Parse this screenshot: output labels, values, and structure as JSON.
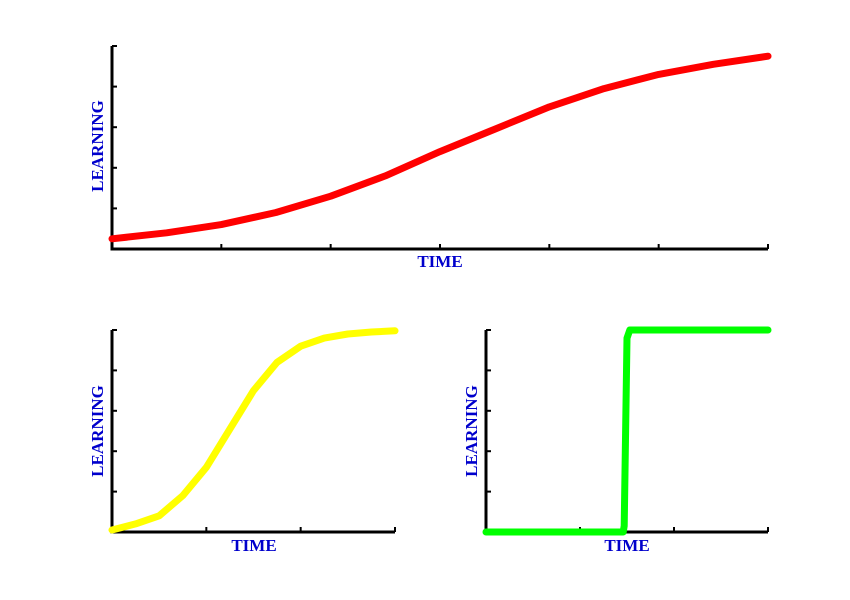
{
  "chart_data": [
    {
      "type": "line",
      "title": "",
      "xlabel": "TIME",
      "ylabel": "LEARNING",
      "xlim": [
        0,
        6
      ],
      "ylim": [
        0,
        5
      ],
      "xticks": [
        0,
        1,
        2,
        3,
        4,
        5,
        6
      ],
      "yticks": [
        0,
        1,
        2,
        3,
        4,
        5
      ],
      "tick_labels_shown": false,
      "grid": false,
      "series": [
        {
          "color": "#ff0000",
          "x": [
            0,
            0.5,
            1,
            1.5,
            2,
            2.5,
            3,
            3.5,
            4,
            4.5,
            5,
            5.5,
            6
          ],
          "y": [
            0.25,
            0.4,
            0.6,
            0.9,
            1.3,
            1.8,
            2.4,
            2.95,
            3.5,
            3.95,
            4.3,
            4.55,
            4.75
          ]
        }
      ]
    },
    {
      "type": "line",
      "title": "",
      "xlabel": "TIME",
      "ylabel": "LEARNING",
      "xlim": [
        0,
        3
      ],
      "ylim": [
        0,
        5
      ],
      "xticks": [
        0,
        1,
        2,
        3
      ],
      "yticks": [
        0,
        1,
        2,
        3,
        4,
        5
      ],
      "tick_labels_shown": false,
      "grid": false,
      "series": [
        {
          "color": "#ffff00",
          "x": [
            0,
            0.25,
            0.5,
            0.75,
            1,
            1.25,
            1.5,
            1.75,
            2,
            2.25,
            2.5,
            2.75,
            3
          ],
          "y": [
            0.05,
            0.2,
            0.4,
            0.9,
            1.6,
            2.55,
            3.5,
            4.2,
            4.6,
            4.8,
            4.9,
            4.95,
            4.98
          ]
        }
      ]
    },
    {
      "type": "line",
      "title": "",
      "xlabel": "TIME",
      "ylabel": "LEARNING",
      "xlim": [
        0,
        3
      ],
      "ylim": [
        0,
        5
      ],
      "xticks": [
        0,
        1,
        2,
        3
      ],
      "yticks": [
        0,
        1,
        2,
        3,
        4,
        5
      ],
      "tick_labels_shown": false,
      "grid": false,
      "series": [
        {
          "color": "#00ff00",
          "x": [
            0,
            1.46,
            1.47,
            1.5,
            1.53,
            3
          ],
          "y": [
            0,
            0,
            0.15,
            4.8,
            5,
            5
          ]
        }
      ]
    }
  ]
}
